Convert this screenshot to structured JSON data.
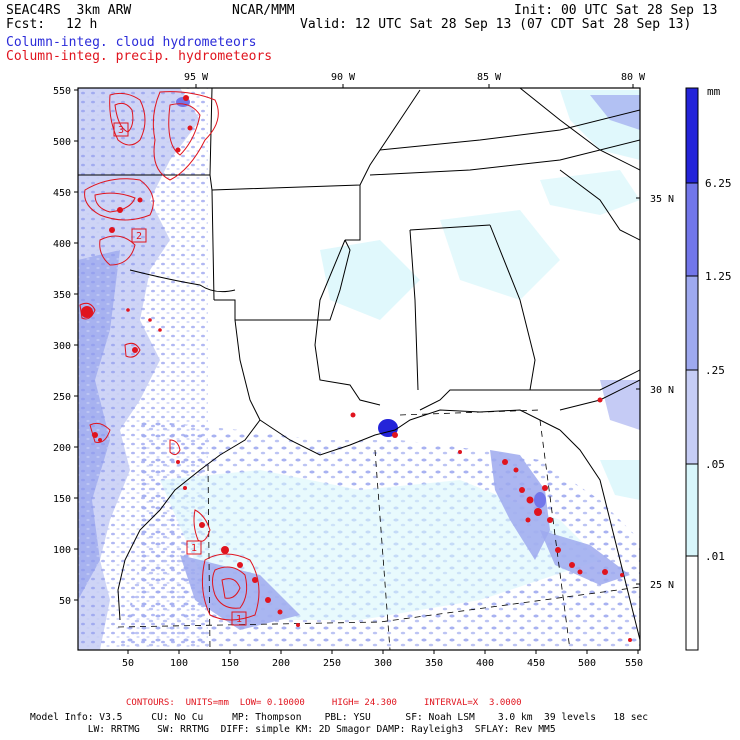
{
  "header": {
    "model": "SEAC4RS  3km ARW",
    "org": "NCAR/MMM",
    "init": "Init: 00 UTC Sat 28 Sep 13",
    "fcst_label": "Fcst:",
    "fcst_value": "12 h",
    "valid": "Valid: 12 UTC Sat 28 Sep 13 (07 CDT Sat 28 Sep 13)",
    "field_cloud": "Column-integ. cloud hydrometeors",
    "field_precip": "Column-integ. precip. hydrometeors"
  },
  "colors": {
    "cloud_text": "#2b2bd9",
    "precip_text": "#e0141e",
    "contour": "#e0141e",
    "levels": [
      "#ffffff",
      "#d8f6fb",
      "#c6cdf5",
      "#9ea9ef",
      "#7276ea",
      "#2424d9"
    ]
  },
  "map": {
    "lon_labels": [
      "95 W",
      "90 W",
      "85 W",
      "80 W"
    ],
    "lat_labels": [
      "35 N",
      "30 N",
      "25 N"
    ],
    "x_ticks": [
      "50",
      "100",
      "150",
      "200",
      "250",
      "300",
      "350",
      "400",
      "450",
      "500",
      "550"
    ],
    "y_ticks": [
      "550",
      "500",
      "450",
      "400",
      "350",
      "300",
      "250",
      "200",
      "150",
      "100",
      "50"
    ],
    "box_labels": [
      "3",
      "2",
      "1",
      "1"
    ]
  },
  "legend": {
    "units": "mm",
    "levels": [
      "6.25",
      "1.25",
      ".25",
      ".05",
      ".01"
    ]
  },
  "footer": {
    "contours": "CONTOURS:  UNITS=mm  LOW= 0.10000     HIGH= 24.300     INTERVAL=X  3.0000",
    "info_line1": "Model Info: V3.5     CU: No Cu     MP: Thompson    PBL: YSU      SF: Noah LSM    3.0 km  39 levels   18 sec",
    "info_line2": "          LW: RRTMG   SW: RRTMG  DIFF: simple KM: 2D Smagor DAMP: Rayleigh3  SFLAY: Rev MM5"
  }
}
